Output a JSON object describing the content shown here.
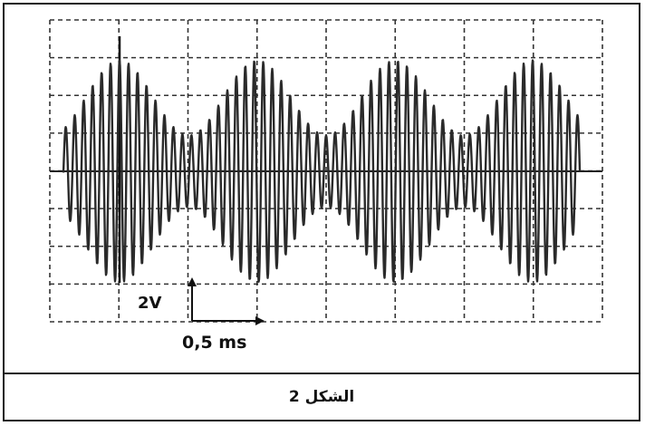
{
  "scale": {
    "vertical": "2V",
    "horizontal": "0,5 ms"
  },
  "caption": "الشكل 2",
  "chart_data": {
    "type": "line",
    "grid": true,
    "grid_divisions": {
      "x": 8,
      "y": 8
    },
    "y_per_division_V": 2,
    "x_per_division_ms": 0.5,
    "series": [
      {
        "signal": "amplitude-modulated sine",
        "carrier_cycles_per_division": 4,
        "envelope_period_divisions": 2,
        "max_amplitude_divisions": 3,
        "min_amplitude_divisions": 1
      }
    ]
  }
}
